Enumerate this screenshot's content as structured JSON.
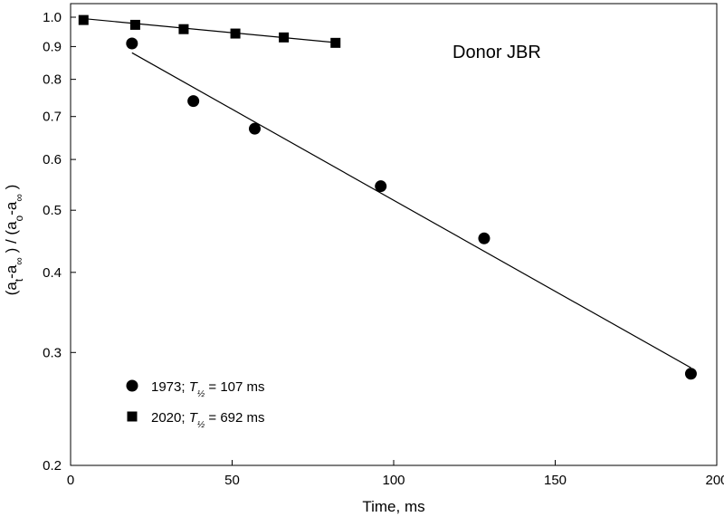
{
  "chart_data": {
    "type": "scatter",
    "title": "",
    "annotation": "Donor JBR",
    "xlabel": "Time, ms",
    "ylabel": {
      "parts": [
        "(a",
        "t",
        "-a",
        "∞",
        " ) / (a",
        "o",
        "-a",
        "∞",
        " )"
      ]
    },
    "xlim": [
      0,
      200
    ],
    "ylim": [
      0.2,
      1.05
    ],
    "y_scale": "log",
    "x_ticks": [
      0,
      50,
      100,
      150,
      200
    ],
    "y_ticks": [
      0.2,
      0.3,
      0.4,
      0.5,
      0.6,
      0.7,
      0.8,
      0.9,
      1.0
    ],
    "y_tick_labels": [
      "0.2",
      "0.3",
      "0.4",
      "0.5",
      "0.6",
      "0.7",
      "0.8",
      "0.9",
      "1.0"
    ],
    "grid": false,
    "legend_position": "bottom-left",
    "series": [
      {
        "name": "1973",
        "legend": {
          "prefix": "1973; ",
          "symbol": "T",
          "sub": "½",
          "suffix": " = 107 ms"
        },
        "marker": "circle",
        "color": "#000000",
        "x": [
          19,
          38,
          57,
          96,
          128,
          192
        ],
        "y": [
          0.91,
          0.74,
          0.67,
          0.545,
          0.452,
          0.278
        ],
        "fit": {
          "x": [
            19,
            192
          ],
          "y": [
            0.88,
            0.284
          ]
        }
      },
      {
        "name": "2020",
        "legend": {
          "prefix": "2020; ",
          "symbol": "T",
          "sub": "½",
          "suffix": " = 692 ms"
        },
        "marker": "square",
        "color": "#000000",
        "x": [
          4,
          20,
          35,
          51,
          66,
          82
        ],
        "y": [
          0.99,
          0.973,
          0.958,
          0.943,
          0.93,
          0.912
        ],
        "fit": {
          "x": [
            4,
            82
          ],
          "y": [
            0.995,
            0.913
          ]
        }
      }
    ]
  }
}
